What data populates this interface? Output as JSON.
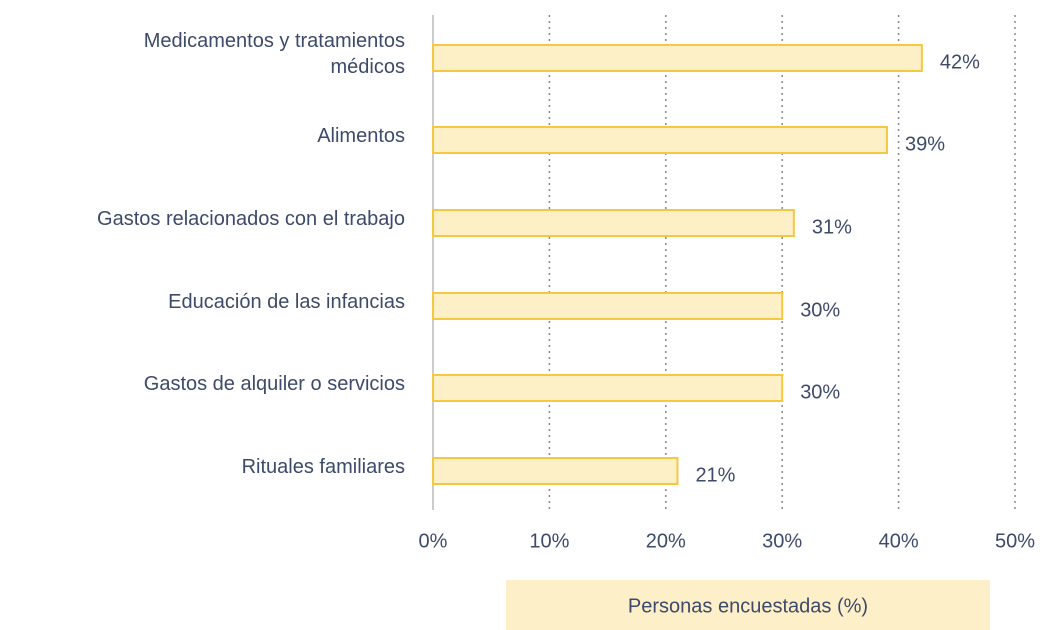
{
  "chart_data": {
    "type": "bar",
    "orientation": "horizontal",
    "categories": [
      "Medicamentos y tratamientos\nmédicos",
      "Alimentos",
      "Gastos relacionados con el trabajo",
      "Educación de las infancias",
      "Gastos de alquiler o servicios",
      "Rituales familiares"
    ],
    "values": [
      42,
      39,
      31,
      30,
      30,
      21
    ],
    "value_labels": [
      "42%",
      "39%",
      "31%",
      "30%",
      "30%",
      "21%"
    ],
    "color": "#fdefc6",
    "edge_color": "#f5c842",
    "xlabel": "Personas encuestadas (%)",
    "xlim": [
      0,
      50
    ],
    "xticks": [
      {
        "value": 0,
        "label": "0%"
      },
      {
        "value": 10,
        "label": "10%"
      },
      {
        "value": 20,
        "label": "20%"
      },
      {
        "value": 30,
        "label": "30%"
      },
      {
        "value": 40,
        "label": "40%"
      },
      {
        "value": 50,
        "label": "50%"
      }
    ],
    "grid": true
  }
}
